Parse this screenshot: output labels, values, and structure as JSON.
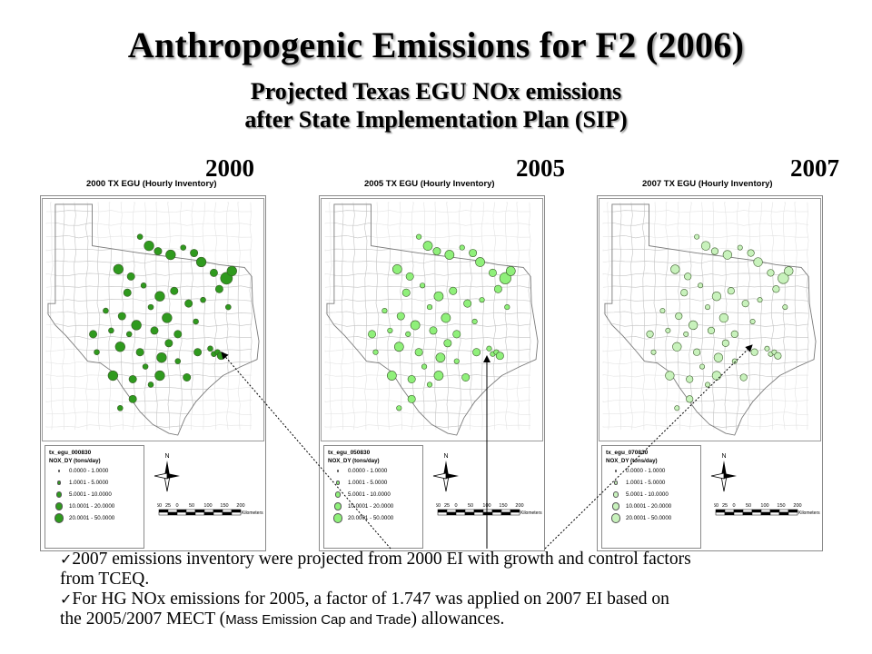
{
  "title": "Anthropogenic Emissions for F2 (2006)",
  "subtitle_line1": "Projected Texas EGU NOx emissions",
  "subtitle_line2": "after State Implementation Plan (SIP)",
  "colors": {
    "y2000_fill": "#2f9a1e",
    "y2005_fill": "#8ff07a",
    "y2007_fill": "#c8f2bc",
    "county_line": "#c2c2c2",
    "state_line": "#7a7a7a"
  },
  "panels": [
    {
      "year": "2000",
      "map_title": "2000 TX EGU (Hourly Inventory)",
      "legend_layer": "tx_egu_000830",
      "fill": "#2f9a1e"
    },
    {
      "year": "2005",
      "map_title": "2005 TX EGU (Hourly Inventory)",
      "legend_layer": "tx_egu_050830",
      "fill": "#8ff07a"
    },
    {
      "year": "2007",
      "map_title": "2007 TX EGU (Hourly Inventory)",
      "legend_layer": "tx_egu_070830",
      "fill": "#c8f2bc"
    }
  ],
  "legend": {
    "field": "NOX_DY   (tons/day)",
    "classes": [
      "0.0000 - 1.0000",
      "1.0001 - 5.0000",
      "5.0001 - 10.0000",
      "10.0001 - 20.0000",
      "20.0001 - 50.0000"
    ]
  },
  "north_label": "N",
  "scale": {
    "ticks": [
      "50",
      "25",
      "0",
      "50",
      "100",
      "150",
      "200"
    ],
    "unit": "Kilometers"
  },
  "bullets": {
    "b1_line1": "2007 emissions inventory were projected from 2000 EI with growth and control factors",
    "b1_line2": "from TCEQ.",
    "b2_line1": "For HG NOx emissions for 2005, a factor of 1.747 was applied on 2007 EI based on",
    "b2_line2_a": "the 2005/2007 MECT (",
    "b2_line2_b": "Mass Emission Cap and Trade",
    "b2_line2_c": ") allowances."
  }
}
